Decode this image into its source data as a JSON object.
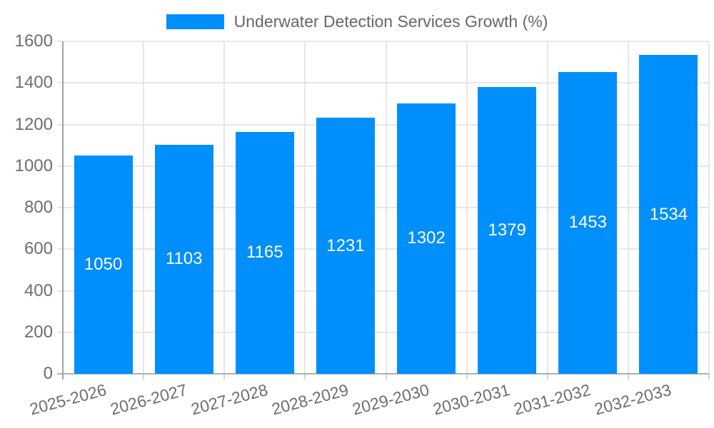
{
  "legend": {
    "series_label": "Underwater Detection Services Growth (%)"
  },
  "chart_data": {
    "type": "bar",
    "title": "Underwater Detection Services Growth (%)",
    "categories": [
      "2025-2026",
      "2026-2027",
      "2027-2028",
      "2028-2029",
      "2029-2030",
      "2030-2031",
      "2031-2032",
      "2032-2033"
    ],
    "values": [
      1050,
      1103,
      1165,
      1231,
      1302,
      1379,
      1453,
      1534
    ],
    "value_labels": [
      "1050",
      "1103",
      "1165",
      "1231",
      "1302",
      "1379",
      "1453",
      "1534"
    ],
    "xlabel": "",
    "ylabel": "",
    "ylim": [
      0,
      1600
    ],
    "yticks": [
      0,
      200,
      400,
      600,
      800,
      1000,
      1200,
      1400,
      1600
    ],
    "ytick_labels": [
      "0",
      "200",
      "400",
      "600",
      "800",
      "1000",
      "1200",
      "1400",
      "1600"
    ],
    "grid": true,
    "legend_position": "top-center",
    "x_label_rotation_deg": -15,
    "colors": {
      "bar": "#008FFB",
      "value_label": "#FFFFFF",
      "axis_text": "#6E6E6E",
      "legend_text": "#666666",
      "gridline": "#E7E7E7",
      "y_axis_line": "#A2A2A2",
      "x_axis_line": "#B0B0B0"
    }
  }
}
